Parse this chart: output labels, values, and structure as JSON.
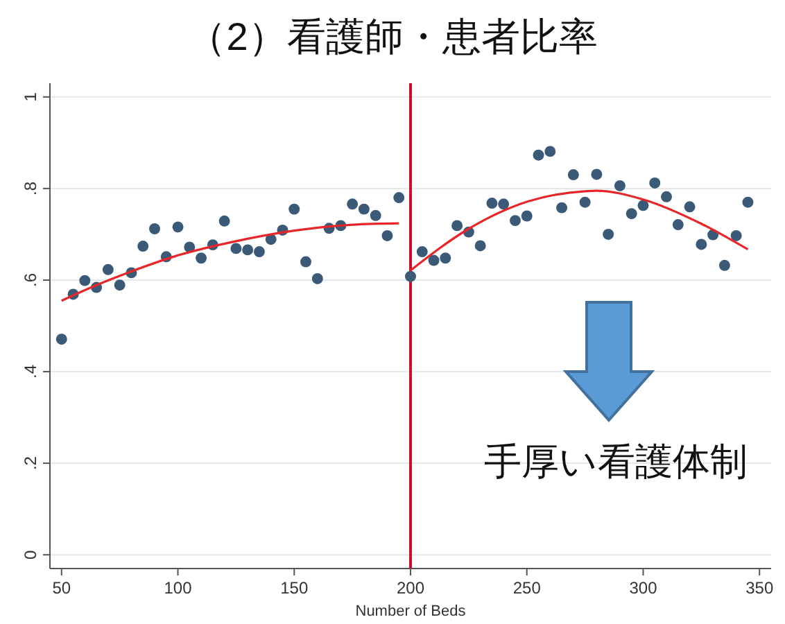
{
  "chart_data": {
    "type": "scatter",
    "title": "（2）看護師・患者比率",
    "xlabel": "Number of Beds",
    "xlim": [
      45,
      355
    ],
    "xticks": [
      50,
      100,
      150,
      200,
      250,
      300,
      350
    ],
    "ylim": [
      -0.03,
      1.03
    ],
    "yticks": [
      {
        "value": 0,
        "label": "0"
      },
      {
        "value": 0.2,
        "label": ".2"
      },
      {
        "value": 0.4,
        "label": ".4"
      },
      {
        "value": 0.6,
        "label": ".6"
      },
      {
        "value": 0.8,
        "label": ".8"
      },
      {
        "value": 1,
        "label": "1"
      }
    ],
    "grid": "y",
    "series": [
      {
        "marker": "circle",
        "color": "#3a5a78",
        "x": [
          50,
          55,
          60,
          65,
          70,
          75,
          80,
          85,
          90,
          95,
          100,
          105,
          110,
          115,
          120,
          125,
          130,
          135,
          140,
          145,
          150,
          155,
          160,
          165,
          170,
          175,
          180,
          185,
          190,
          195,
          200,
          205,
          210,
          215,
          220,
          225,
          230,
          235,
          240,
          245,
          250,
          255,
          260,
          265,
          270,
          275,
          280,
          285,
          290,
          295,
          300,
          305,
          310,
          315,
          320,
          325,
          330,
          335,
          340,
          345
        ],
        "values": [
          0.471,
          0.569,
          0.599,
          0.584,
          0.623,
          0.589,
          0.616,
          0.674,
          0.712,
          0.651,
          0.716,
          0.672,
          0.648,
          0.677,
          0.729,
          0.669,
          0.666,
          0.662,
          0.689,
          0.709,
          0.755,
          0.64,
          0.603,
          0.713,
          0.719,
          0.766,
          0.755,
          0.741,
          0.697,
          0.78,
          0.608,
          0.662,
          0.643,
          0.648,
          0.719,
          0.705,
          0.675,
          0.768,
          0.766,
          0.73,
          0.74,
          0.873,
          0.881,
          0.758,
          0.83,
          0.77,
          0.831,
          0.7,
          0.806,
          0.745,
          0.763,
          0.812,
          0.782,
          0.721,
          0.76,
          0.678,
          0.699,
          0.632,
          0.697,
          0.77
        ]
      },
      {
        "type": "line",
        "color": "#e8262a",
        "x": [
          50,
          65,
          80,
          100,
          125,
          150,
          175,
          195
        ],
        "values": [
          0.555,
          0.589,
          0.619,
          0.654,
          0.685,
          0.708,
          0.721,
          0.724
        ]
      },
      {
        "type": "line",
        "color": "#e8262a",
        "x": [
          200,
          225,
          250,
          275,
          280,
          300,
          325,
          345
        ],
        "values": [
          0.621,
          0.712,
          0.771,
          0.794,
          0.795,
          0.776,
          0.723,
          0.667
        ]
      }
    ],
    "ref_lines": [
      {
        "axis": "x",
        "value": 200,
        "color": "#c8102e"
      }
    ],
    "annotations": [
      "手厚い看護体制"
    ]
  }
}
